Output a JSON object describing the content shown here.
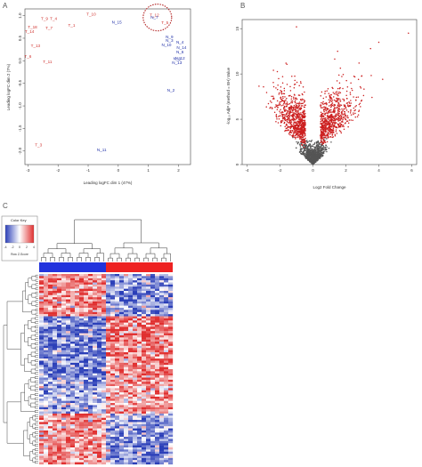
{
  "panels": {
    "a": {
      "letter": "A",
      "xlabel": "Leading logFC dim 1 (47%)",
      "ylabel": "Leading logFC dim 2 (7%)",
      "xticks": [
        "-3",
        "-2",
        "-1",
        "0",
        "1",
        "2"
      ],
      "yticks": [
        "-2.0",
        "-1.5",
        "-1.0",
        "-0.5",
        "0.0",
        "0.5",
        "1.0"
      ]
    },
    "b": {
      "letter": "B",
      "xlabel": "Log2 Fold Change",
      "ylabel": "-log₁₀ AdjP (method = BH) Value",
      "xticks": [
        "-4",
        "-2",
        "0",
        "2",
        "4",
        "6"
      ],
      "yticks": [
        "0",
        "5",
        "10",
        "15"
      ]
    },
    "c": {
      "letter": "C",
      "color_key_title": "Color Key",
      "color_key_ticks": [
        "-4",
        "-2",
        "0",
        "2",
        "4"
      ],
      "color_key_xlabel": "Row Z-Score"
    }
  },
  "chart_data": [
    {
      "type": "scatter",
      "xlabel": "Leading logFC dim 1 (47%)",
      "ylabel": "Leading logFC dim 2 (7%)",
      "xlim": [
        -3.1,
        2.4
      ],
      "ylim": [
        -2.3,
        1.15
      ],
      "colors": {
        "T": "#d0312d",
        "N": "#1f2fa8"
      },
      "points": [
        {
          "label": "T_10",
          "group": "T",
          "x": -0.9,
          "y": 1.0
        },
        {
          "label": "N_15",
          "group": "N",
          "x": -0.05,
          "y": 0.82
        },
        {
          "label": "T_9",
          "group": "T",
          "x": -2.45,
          "y": 0.9
        },
        {
          "label": "T_4",
          "group": "T",
          "x": -2.15,
          "y": 0.9
        },
        {
          "label": "T_1",
          "group": "T",
          "x": -1.55,
          "y": 0.76
        },
        {
          "label": "T_7",
          "group": "T",
          "x": -2.3,
          "y": 0.7
        },
        {
          "label": "T_18",
          "group": "T",
          "x": -2.85,
          "y": 0.72
        },
        {
          "label": "T_14",
          "group": "T",
          "x": -2.95,
          "y": 0.62
        },
        {
          "label": "T_13",
          "group": "T",
          "x": -2.75,
          "y": 0.3
        },
        {
          "label": "T_6",
          "group": "T",
          "x": -3.0,
          "y": 0.07
        },
        {
          "label": "T_11",
          "group": "T",
          "x": -2.35,
          "y": -0.05
        },
        {
          "label": "T_3",
          "group": "T",
          "x": -2.65,
          "y": -1.9
        },
        {
          "label": "T_12",
          "group": "T",
          "x": 1.2,
          "y": 0.98
        },
        {
          "label": "N_7",
          "group": "N",
          "x": 1.2,
          "y": 0.93
        },
        {
          "label": "T_5",
          "group": "T",
          "x": 1.55,
          "y": 0.81
        },
        {
          "label": "N_9",
          "group": "N",
          "x": 1.7,
          "y": 0.5
        },
        {
          "label": "N_3",
          "group": "N",
          "x": 1.7,
          "y": 0.42
        },
        {
          "label": "N_10",
          "group": "N",
          "x": 1.6,
          "y": 0.32
        },
        {
          "label": "N_4",
          "group": "N",
          "x": 2.05,
          "y": 0.38
        },
        {
          "label": "N_14",
          "group": "N",
          "x": 2.1,
          "y": 0.26
        },
        {
          "label": "N_6",
          "group": "N",
          "x": 2.05,
          "y": 0.16
        },
        {
          "label": "N_12",
          "group": "N",
          "x": 2.05,
          "y": 0.03
        },
        {
          "label": "N_8",
          "group": "N",
          "x": 1.95,
          "y": 0.02
        },
        {
          "label": "N_13",
          "group": "N",
          "x": 1.95,
          "y": -0.07
        },
        {
          "label": "N_2",
          "group": "N",
          "x": 1.75,
          "y": -0.68
        },
        {
          "label": "N_11",
          "group": "N",
          "x": -0.55,
          "y": -2.0
        }
      ],
      "highlight_circle": {
        "x": 1.3,
        "y": 0.93
      }
    },
    {
      "type": "scatter",
      "subtype": "volcano",
      "xlabel": "Log2 Fold Change",
      "ylabel": "-log₁₀ AdjP (method = BH) Value",
      "xlim": [
        -4.3,
        6.3
      ],
      "ylim": [
        0,
        16
      ],
      "colors": {
        "significant": "#cc1f1f",
        "not_significant": "#555555"
      }
    },
    {
      "type": "heatmap",
      "column_groups": [
        {
          "group": "N",
          "count": 15,
          "color": "#2233dd"
        },
        {
          "group": "T",
          "count": 15,
          "color": "#ee2222"
        }
      ],
      "color_scale": {
        "low": "#2b3fb8",
        "mid": "#ffffff",
        "high": "#e03030",
        "range": [
          -4,
          4
        ]
      }
    }
  ]
}
